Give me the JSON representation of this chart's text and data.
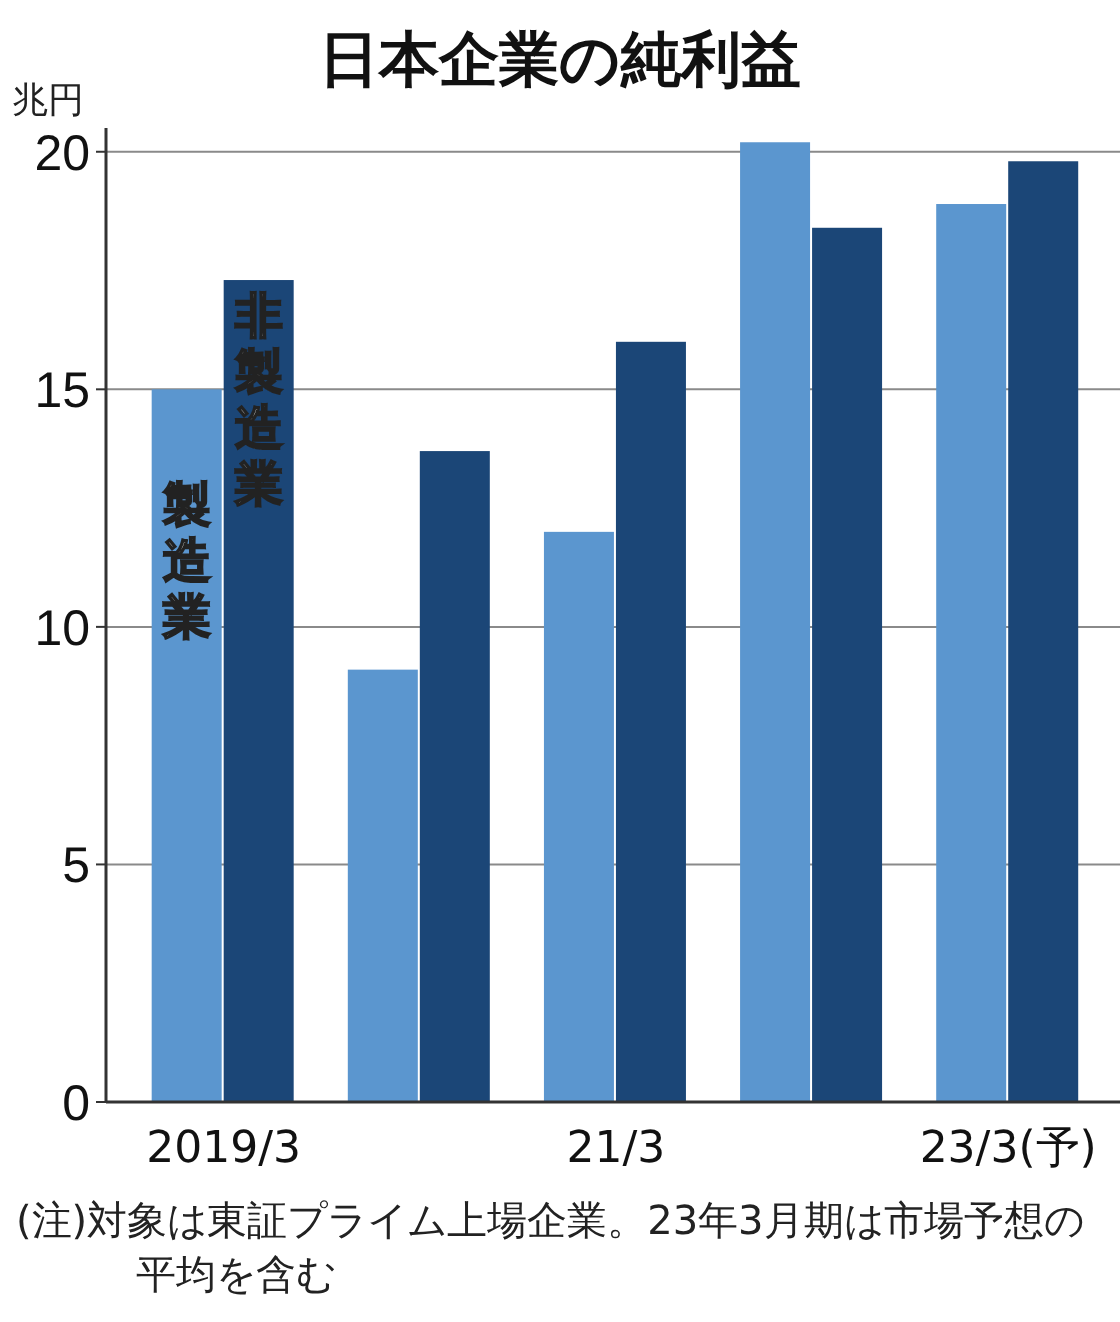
{
  "chart_data": {
    "type": "bar",
    "title": "日本企業の純利益",
    "ylabel": "兆円",
    "categories": [
      "2019/3",
      null,
      "21/3",
      null,
      "23/3(予)"
    ],
    "series": [
      {
        "name": "製造業",
        "color": "#5b96cf",
        "values": [
          15.0,
          9.1,
          12.0,
          20.2,
          18.9
        ]
      },
      {
        "name": "非製造業",
        "color": "#1b4677",
        "values": [
          17.3,
          13.7,
          16.0,
          18.4,
          19.8
        ]
      }
    ],
    "ylim": [
      0,
      20.5
    ],
    "yticks": [
      0,
      5,
      10,
      15,
      20
    ],
    "grid": "y",
    "legend": false,
    "annotations": [
      "(注)対象は東証プライム上場企業。23年3月期は市場予想の平均を含む"
    ]
  }
}
